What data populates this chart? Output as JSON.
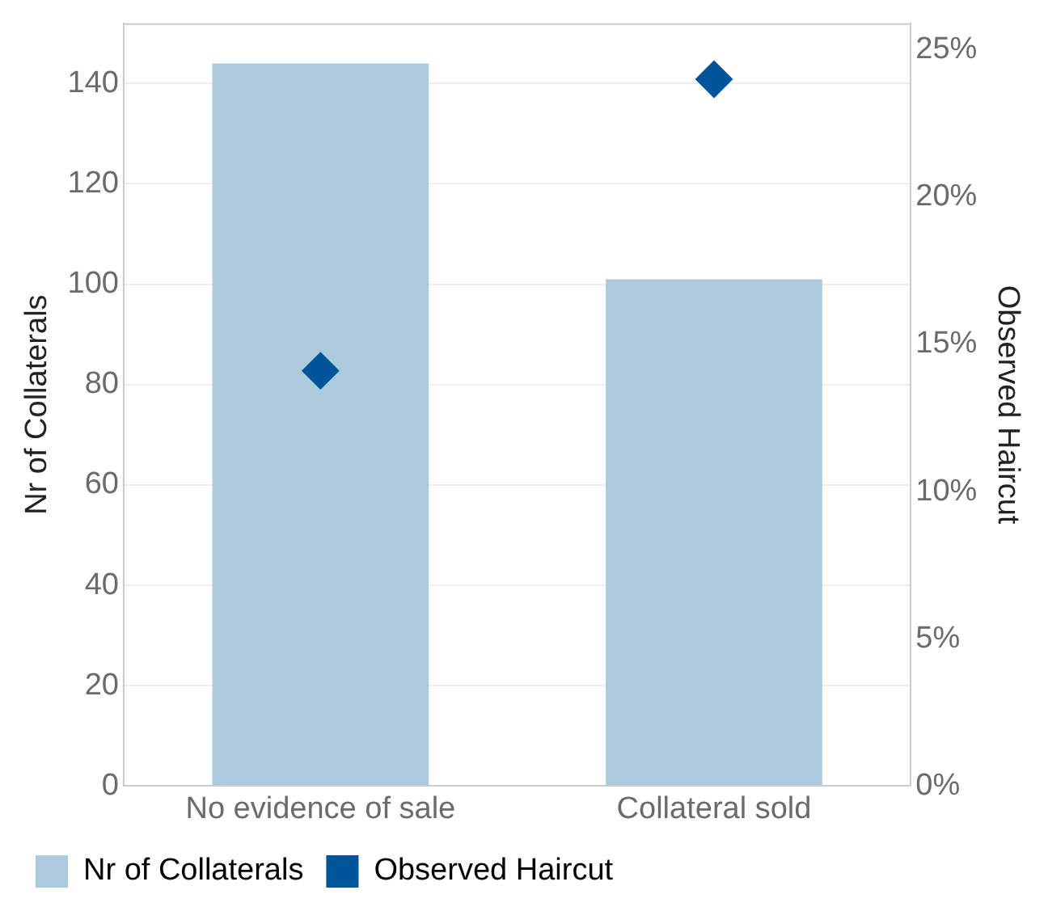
{
  "chart_data": {
    "type": "bar",
    "categories": [
      "No evidence of sale",
      "Collateral sold"
    ],
    "series": [
      {
        "name": "Nr of Collaterals",
        "color": "#abcbdc",
        "values": [
          144,
          101
        ]
      },
      {
        "name": "Observed Haircut",
        "type": "scatter",
        "axis": "y2",
        "color": "#00559a",
        "values": [
          14.1,
          24.0
        ]
      }
    ],
    "ylabel": "Nr of Collaterals",
    "y2label": "Observed Haircut",
    "ylim": [
      0,
      152
    ],
    "yticks": [
      0,
      20,
      40,
      60,
      80,
      100,
      120,
      140
    ],
    "y2lim": [
      0,
      25.9
    ],
    "y2ticks": [
      {
        "value": 0,
        "label": "0%"
      },
      {
        "value": 5,
        "label": "5%"
      },
      {
        "value": 10,
        "label": "10%"
      },
      {
        "value": 15,
        "label": "15%"
      },
      {
        "value": 20,
        "label": "20%"
      },
      {
        "value": 25,
        "label": "25%"
      }
    ],
    "marker": "diamond",
    "grid": "y",
    "legend": "bottom left"
  }
}
